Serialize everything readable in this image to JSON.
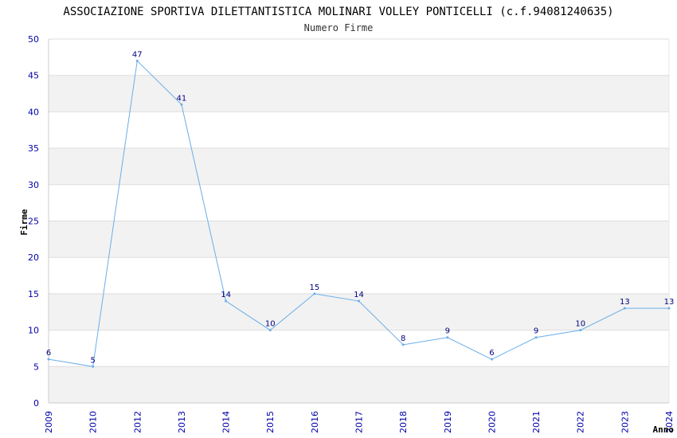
{
  "chart_data": {
    "type": "line",
    "title": "ASSOCIAZIONE SPORTIVA DILETTANTISTICA MOLINARI VOLLEY PONTICELLI (c.f.94081240635)",
    "subtitle": "Numero Firme",
    "xlabel": "Anno",
    "ylabel": "Firme",
    "ylim": [
      0,
      50
    ],
    "yticks": [
      0,
      5,
      10,
      15,
      20,
      25,
      30,
      35,
      40,
      45,
      50
    ],
    "categories": [
      "2009",
      "2010",
      "2012",
      "2013",
      "2014",
      "2015",
      "2016",
      "2017",
      "2018",
      "2019",
      "2020",
      "2021",
      "2022",
      "2023",
      "2024"
    ],
    "values": [
      6,
      5,
      47,
      41,
      14,
      10,
      15,
      14,
      8,
      9,
      6,
      9,
      10,
      13,
      13
    ],
    "colors": {
      "line": "#6aaee8",
      "band": "#f2f2f2",
      "grid": "#dddddd",
      "tick_text": "#0000aa",
      "label_text": "#000080"
    }
  }
}
